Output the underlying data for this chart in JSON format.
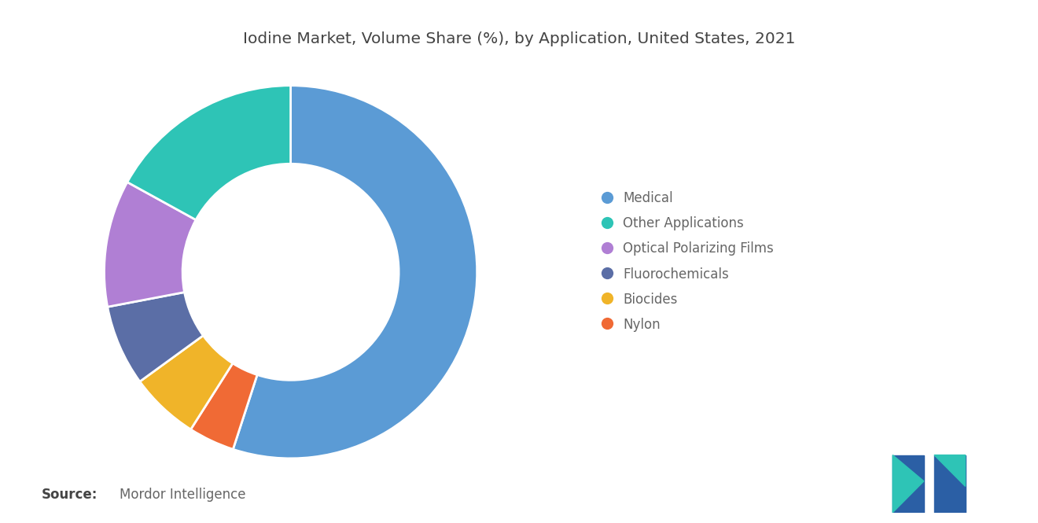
{
  "title": "Iodine Market, Volume Share (%), by Application, United States, 2021",
  "segments": [
    {
      "label": "Medical",
      "value": 55,
      "color": "#5B9BD5"
    },
    {
      "label": "Other Applications",
      "value": 17,
      "color": "#2EC4B6"
    },
    {
      "label": "Optical Polarizing Films",
      "value": 11,
      "color": "#B07FD4"
    },
    {
      "label": "Fluorochemicals",
      "value": 7,
      "color": "#5B6EA6"
    },
    {
      "label": "Biocides",
      "value": 6,
      "color": "#F0B429"
    },
    {
      "label": "Nylon",
      "value": 4,
      "color": "#F06A35"
    }
  ],
  "source_bold": "Source:",
  "source_normal": "Mordor Intelligence",
  "background_color": "#ffffff",
  "title_fontsize": 14.5,
  "legend_fontsize": 12,
  "source_fontsize": 12
}
